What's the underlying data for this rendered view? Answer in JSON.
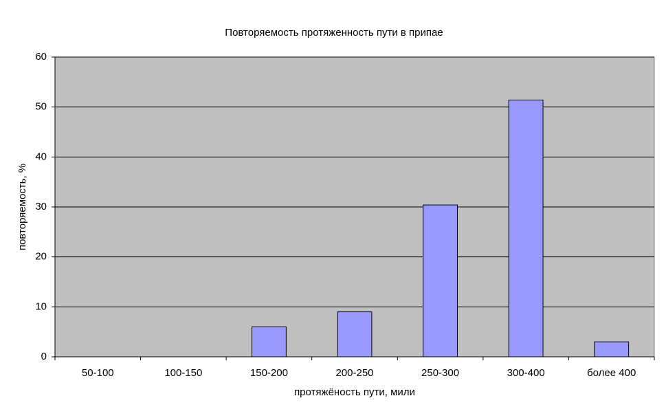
{
  "chart_data": {
    "type": "bar",
    "title": "Повторяемость протяженность пути в припае",
    "x_label": "протяжёность пути, мили",
    "y_label": "повторяемость, %",
    "categories": [
      "50-100",
      "100-150",
      "150-200",
      "200-250",
      "250-300",
      "300-400",
      "более 400"
    ],
    "values": [
      0,
      0,
      6,
      9,
      30.4,
      51.4,
      3
    ],
    "color": "#9999ff",
    "ylim": [
      0,
      60
    ],
    "yticks": [
      0,
      10,
      20,
      30,
      40,
      50,
      60
    ],
    "grid": true
  }
}
